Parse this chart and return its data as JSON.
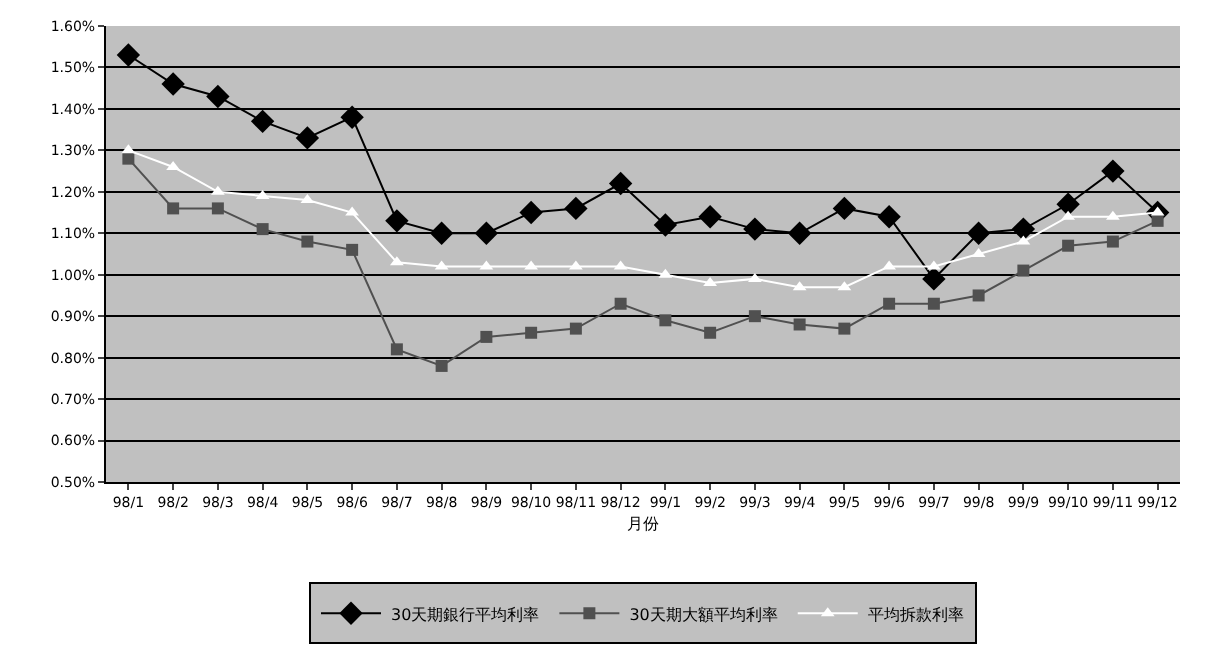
{
  "chart_data": {
    "type": "line",
    "xlabel": "月份",
    "categories": [
      "98/1",
      "98/2",
      "98/3",
      "98/4",
      "98/5",
      "98/6",
      "98/7",
      "98/8",
      "98/9",
      "98/10",
      "98/11",
      "98/12",
      "99/1",
      "99/2",
      "99/3",
      "99/4",
      "99/5",
      "99/6",
      "99/7",
      "99/8",
      "99/9",
      "99/10",
      "99/11",
      "99/12"
    ],
    "series": [
      {
        "name": "30天期銀行平均利率",
        "color": "#000000",
        "marker": "diamond",
        "values": [
          1.53,
          1.46,
          1.43,
          1.37,
          1.33,
          1.38,
          1.13,
          1.1,
          1.1,
          1.15,
          1.16,
          1.22,
          1.12,
          1.14,
          1.11,
          1.1,
          1.16,
          1.14,
          0.99,
          1.1,
          1.11,
          1.17,
          1.25,
          1.15
        ]
      },
      {
        "name": "30天期大額平均利率",
        "color": "#505050",
        "marker": "square",
        "values": [
          1.28,
          1.16,
          1.16,
          1.11,
          1.08,
          1.06,
          0.82,
          0.78,
          0.85,
          0.86,
          0.87,
          0.93,
          0.89,
          0.86,
          0.9,
          0.88,
          0.87,
          0.93,
          0.93,
          0.95,
          1.01,
          1.07,
          1.08,
          1.13
        ]
      },
      {
        "name": "平均拆款利率",
        "color": "#ffffff",
        "marker": "triangle",
        "values": [
          1.3,
          1.26,
          1.2,
          1.19,
          1.18,
          1.15,
          1.03,
          1.02,
          1.02,
          1.02,
          1.02,
          1.02,
          1.0,
          0.98,
          0.99,
          0.97,
          0.97,
          1.02,
          1.02,
          1.05,
          1.08,
          1.14,
          1.14,
          1.15
        ]
      }
    ],
    "ylim": [
      0.5,
      1.6
    ],
    "yticks": [
      {
        "value": 0.5,
        "label": "0.50%"
      },
      {
        "value": 0.6,
        "label": "0.60%"
      },
      {
        "value": 0.7,
        "label": "0.70%"
      },
      {
        "value": 0.8,
        "label": "0.80%"
      },
      {
        "value": 0.9,
        "label": "0.90%"
      },
      {
        "value": 1.0,
        "label": "1.00%"
      },
      {
        "value": 1.1,
        "label": "1.10%"
      },
      {
        "value": 1.2,
        "label": "1.20%"
      },
      {
        "value": 1.3,
        "label": "1.30%"
      },
      {
        "value": 1.4,
        "label": "1.40%"
      },
      {
        "value": 1.5,
        "label": "1.50%"
      },
      {
        "value": 1.6,
        "label": "1.60%"
      }
    ],
    "grid": "y",
    "legend": "bottom",
    "line_style": "solid"
  }
}
